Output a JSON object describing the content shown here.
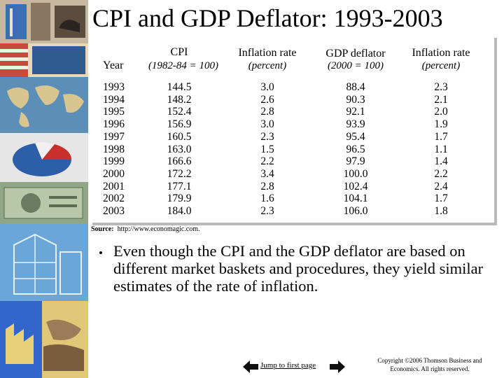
{
  "title": "CPI and GDP Deflator:  1993-2003",
  "table": {
    "headers": {
      "year": "Year",
      "cpi": "CPI",
      "cpi_note": "(1982-84 = 100)",
      "cpi_infl": "Inflation rate",
      "cpi_infl_note": "(percent)",
      "gdp": "GDP deflator",
      "gdp_note": "(2000 = 100)",
      "gdp_infl": "Inflation rate",
      "gdp_infl_note": "(percent)"
    },
    "years": [
      "1993",
      "1994",
      "1995",
      "1996",
      "1997",
      "1998",
      "1999",
      "2000",
      "2001",
      "2002",
      "2003"
    ],
    "cpi": [
      "144.5",
      "148.2",
      "152.4",
      "156.9",
      "160.5",
      "163.0",
      "166.6",
      "172.2",
      "177.1",
      "179.9",
      "184.0"
    ],
    "cpi_inflation": [
      "3.0",
      "2.6",
      "2.8",
      "3.0",
      "2.3",
      "1.5",
      "2.2",
      "3.4",
      "2.8",
      "1.6",
      "2.3"
    ],
    "gdp_deflator": [
      "88.4",
      "90.3",
      "92.1",
      "93.9",
      "95.4",
      "96.5",
      "97.9",
      "100.0",
      "102.4",
      "104.1",
      "106.0"
    ],
    "gdp_inflation": [
      "2.3",
      "2.1",
      "2.0",
      "1.9",
      "1.7",
      "1.1",
      "1.4",
      "2.2",
      "2.4",
      "1.7",
      "1.8"
    ]
  },
  "source": {
    "label": "Source:",
    "text": "  http://www.economagic.com."
  },
  "bullet": "Even though the CPI and the GDP deflator are based on different market baskets and procedures, they yield similar estimates of the rate of inflation.",
  "nav": {
    "jump_label": "Jump to first page"
  },
  "copyright": "Copyright ©2006  Thomson Business and Economics. All rights reserved."
}
